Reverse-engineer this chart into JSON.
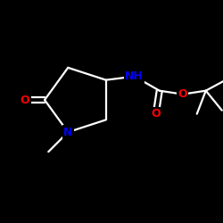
{
  "background_color": "#000000",
  "bond_color": "#ffffff",
  "atom_colors": {
    "N": "#0000ff",
    "O": "#ff0000"
  },
  "fig_size": [
    2.5,
    2.5
  ],
  "dpi": 100,
  "font_size": 8.5
}
